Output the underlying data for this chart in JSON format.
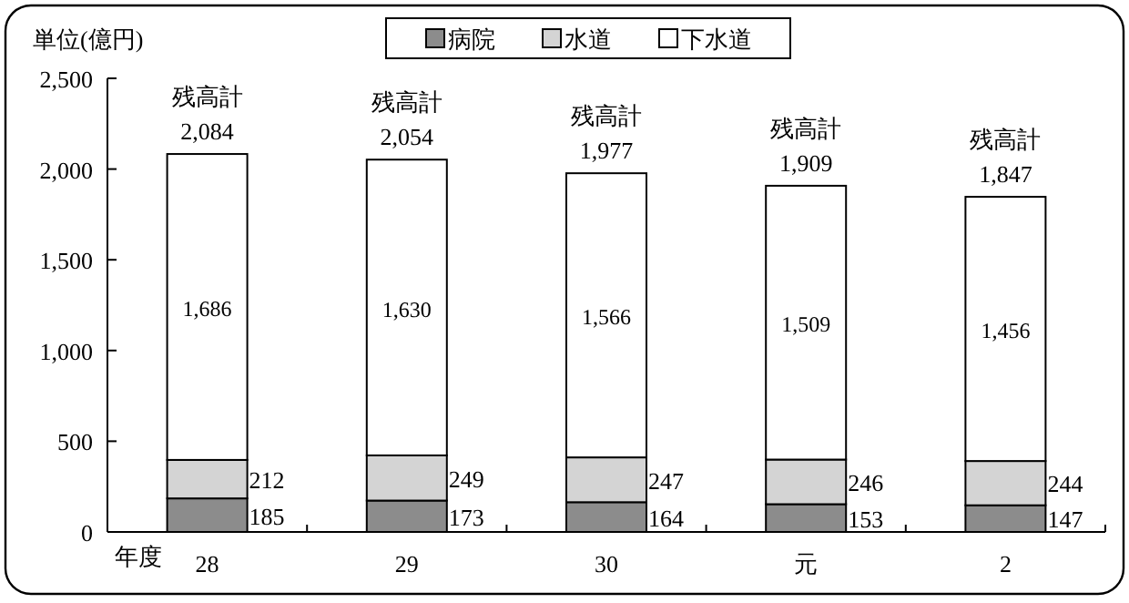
{
  "chart_data": {
    "type": "bar",
    "stacked": true,
    "ylabel": "単位(億円)",
    "xlabel": "年度",
    "categories": [
      "28",
      "29",
      "30",
      "元",
      "2"
    ],
    "series": [
      {
        "name": "病院",
        "color": "#8c8c8c",
        "values": [
          185,
          173,
          164,
          153,
          147
        ],
        "value_labels": [
          "185",
          "173",
          "164",
          "153",
          "147"
        ]
      },
      {
        "name": "水道",
        "color": "#d4d4d4",
        "values": [
          212,
          249,
          247,
          246,
          244
        ],
        "value_labels": [
          "212",
          "249",
          "247",
          "246",
          "244"
        ]
      },
      {
        "name": "下水道",
        "color": "#ffffff",
        "values": [
          1686,
          1630,
          1566,
          1509,
          1456
        ],
        "value_labels": [
          "1,686",
          "1,630",
          "1,566",
          "1,509",
          "1,456"
        ]
      }
    ],
    "ylim": [
      0,
      2500
    ],
    "yticks": [
      0,
      {
        "value": 500,
        "label": "500"
      },
      {
        "value": 1000,
        "label": "1,000"
      },
      {
        "value": 1500,
        "label": "1,500"
      },
      {
        "value": 2000,
        "label": "2,000"
      },
      {
        "value": 2500,
        "label": "2,500"
      }
    ],
    "totals": [
      "残高計\n2,084",
      "残高計\n2,054",
      "残高計\n1,977",
      "残高計\n1,909",
      "残高計\n1,847"
    ],
    "grid": false,
    "legend": "top"
  }
}
